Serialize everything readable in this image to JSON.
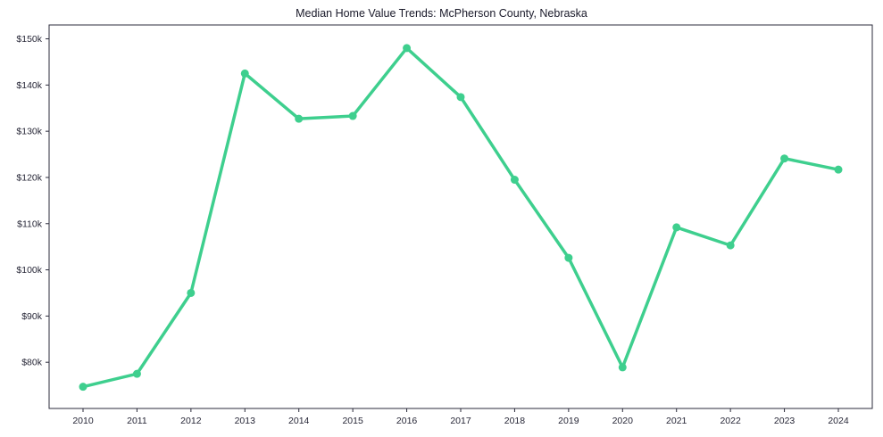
{
  "chart_data": {
    "type": "line",
    "title": "Median Home Value Trends: McPherson County, Nebraska",
    "xlabel": "",
    "ylabel": "",
    "x": [
      2010,
      2011,
      2012,
      2013,
      2014,
      2015,
      2016,
      2017,
      2018,
      2019,
      2020,
      2021,
      2022,
      2023,
      2024
    ],
    "series": [
      {
        "name": "Median Home Value",
        "values": [
          74700,
          77500,
          95000,
          142500,
          132700,
          133300,
          148000,
          137400,
          119500,
          102600,
          78900,
          109200,
          105300,
          124100,
          121700
        ]
      }
    ],
    "ylim": [
      70000,
      153000
    ],
    "yticks": [
      80000,
      90000,
      100000,
      110000,
      120000,
      130000,
      140000,
      150000
    ],
    "ytick_labels": [
      "$80k",
      "$90k",
      "$100k",
      "$110k",
      "$120k",
      "$130k",
      "$140k",
      "$150k"
    ],
    "xtick_labels": [
      "2010",
      "2011",
      "2012",
      "2013",
      "2014",
      "2015",
      "2016",
      "2017",
      "2018",
      "2019",
      "2020",
      "2021",
      "2022",
      "2023",
      "2024"
    ],
    "grid": false,
    "legend_position": "none",
    "line_color": "#3ecf8e",
    "marker_color": "#3ecf8e",
    "axis_color": "#2b2b3b",
    "line_width": 3.5,
    "marker_radius": 4.5
  }
}
